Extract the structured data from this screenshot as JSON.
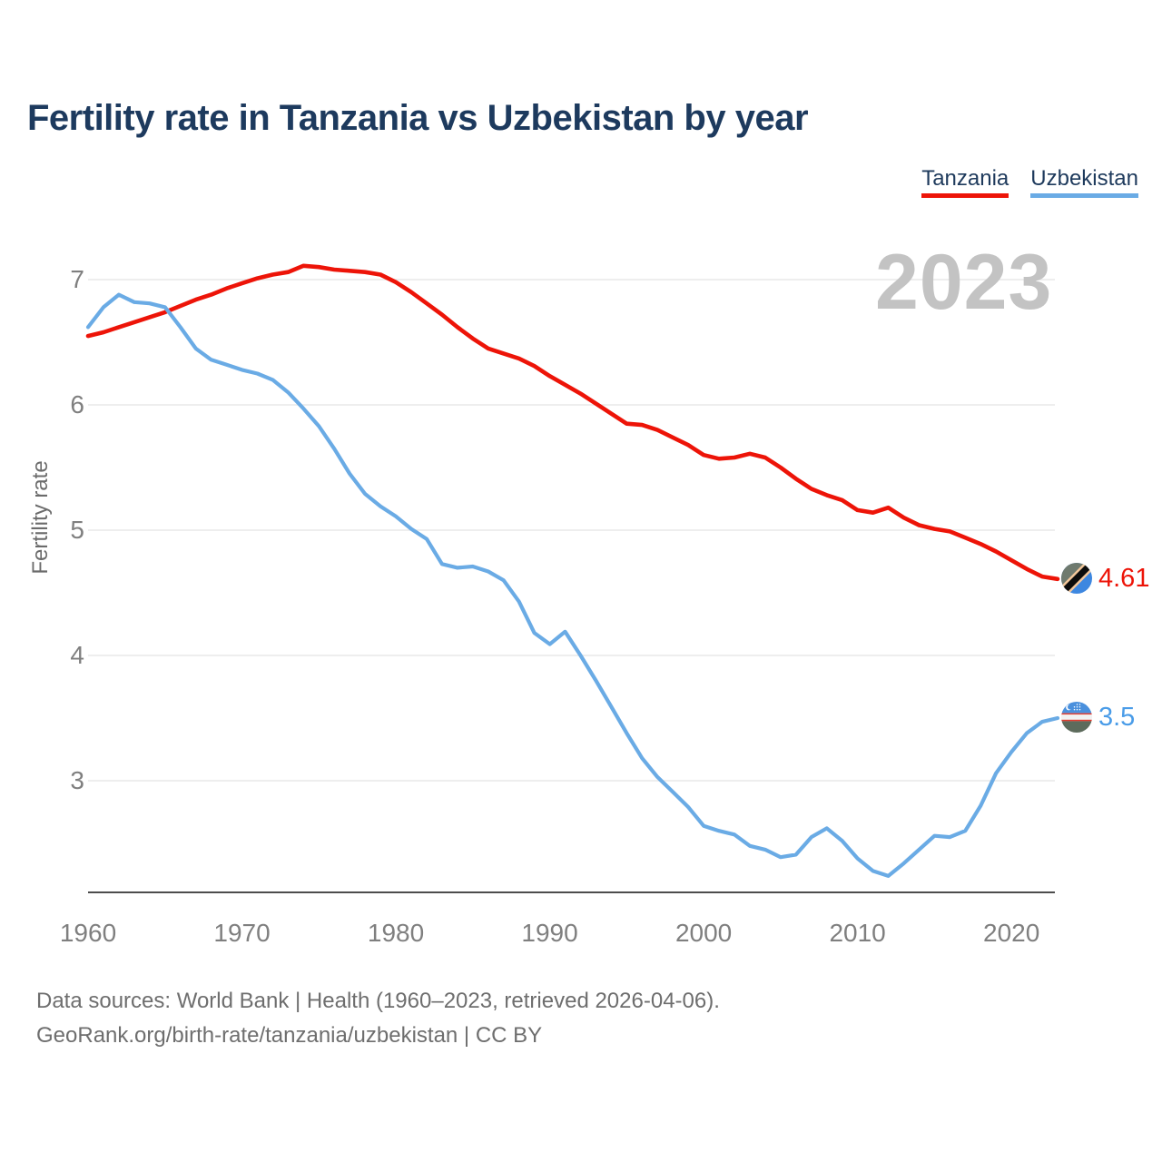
{
  "header": {
    "title": "Fertility rate in Tanzania vs Uzbekistan by year"
  },
  "legend": {
    "items": [
      {
        "label": "Tanzania",
        "color": "#ed1408"
      },
      {
        "label": "Uzbekistan",
        "color": "#6aabe5"
      }
    ]
  },
  "chart": {
    "watermark": "2023",
    "ylabel": "Fertility rate"
  },
  "chart_data": {
    "type": "line",
    "title": "Fertility rate in Tanzania vs Uzbekistan by year",
    "xlabel": "",
    "ylabel": "Fertility rate",
    "grid": "horizontal",
    "legend_position": "top-right",
    "x_ticks": [
      1960,
      1970,
      1980,
      1990,
      2000,
      2010,
      2020
    ],
    "y_ticks": [
      3,
      4,
      5,
      6,
      7
    ],
    "ylim": [
      2.1,
      7.3
    ],
    "x": [
      1960,
      1961,
      1962,
      1963,
      1964,
      1965,
      1966,
      1967,
      1968,
      1969,
      1970,
      1971,
      1972,
      1973,
      1974,
      1975,
      1976,
      1977,
      1978,
      1979,
      1980,
      1981,
      1982,
      1983,
      1984,
      1985,
      1986,
      1987,
      1988,
      1989,
      1990,
      1991,
      1992,
      1993,
      1994,
      1995,
      1996,
      1997,
      1998,
      1999,
      2000,
      2001,
      2002,
      2003,
      2004,
      2005,
      2006,
      2007,
      2008,
      2009,
      2010,
      2011,
      2012,
      2013,
      2014,
      2015,
      2016,
      2017,
      2018,
      2019,
      2020,
      2021,
      2022,
      2023
    ],
    "series": [
      {
        "name": "Tanzania",
        "color": "#ed1408",
        "values": [
          6.55,
          6.58,
          6.62,
          6.66,
          6.7,
          6.74,
          6.79,
          6.84,
          6.88,
          6.93,
          6.97,
          7.01,
          7.04,
          7.06,
          7.11,
          7.1,
          7.08,
          7.07,
          7.06,
          7.04,
          6.98,
          6.9,
          6.81,
          6.72,
          6.62,
          6.53,
          6.45,
          6.41,
          6.37,
          6.31,
          6.23,
          6.16,
          6.09,
          6.01,
          5.93,
          5.85,
          5.84,
          5.8,
          5.74,
          5.68,
          5.6,
          5.57,
          5.58,
          5.61,
          5.58,
          5.5,
          5.41,
          5.33,
          5.28,
          5.24,
          5.16,
          5.14,
          5.18,
          5.1,
          5.04,
          5.01,
          4.99,
          4.94,
          4.89,
          4.83,
          4.76,
          4.69,
          4.63,
          4.61
        ]
      },
      {
        "name": "Uzbekistan",
        "color": "#6aabe5",
        "values": [
          6.62,
          6.78,
          6.88,
          6.82,
          6.81,
          6.78,
          6.62,
          6.45,
          6.36,
          6.32,
          6.28,
          6.25,
          6.2,
          6.1,
          5.97,
          5.83,
          5.65,
          5.45,
          5.29,
          5.19,
          5.11,
          5.01,
          4.93,
          4.73,
          4.7,
          4.71,
          4.67,
          4.6,
          4.43,
          4.18,
          4.09,
          4.19,
          4.0,
          3.8,
          3.59,
          3.38,
          3.18,
          3.03,
          2.91,
          2.79,
          2.64,
          2.6,
          2.57,
          2.48,
          2.45,
          2.39,
          2.41,
          2.55,
          2.62,
          2.52,
          2.38,
          2.28,
          2.24,
          2.34,
          2.45,
          2.56,
          2.55,
          2.6,
          2.8,
          3.06,
          3.23,
          3.38,
          3.47,
          3.5
        ]
      }
    ],
    "end_labels": [
      {
        "series": "Tanzania",
        "value": "4.61"
      },
      {
        "series": "Uzbekistan",
        "value": "3.5"
      }
    ]
  },
  "footer": {
    "line1": "Data sources: World Bank | Health (1960–2023, retrieved 2026-04-06).",
    "line2": "GeoRank.org/birth-rate/tanzania/uzbekistan | CC BY"
  }
}
